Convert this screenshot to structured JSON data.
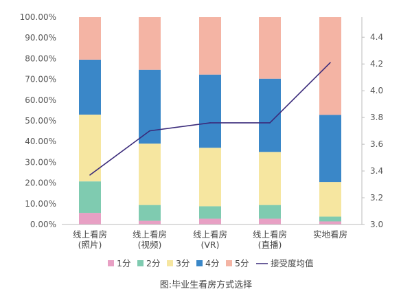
{
  "chart_data": {
    "type": "bar",
    "stacked": true,
    "categories": [
      [
        "线上看房",
        "(照片)"
      ],
      [
        "线上看房",
        "(视频)"
      ],
      [
        "线上看房",
        "(VR)"
      ],
      [
        "线上看房",
        "(直播)"
      ],
      [
        "实地看房"
      ]
    ],
    "series": [
      {
        "name": "1分",
        "color": "#e8a0c4",
        "values": [
          5.6,
          1.8,
          2.8,
          2.8,
          1.5
        ]
      },
      {
        "name": "2分",
        "color": "#7fcbb0",
        "values": [
          15.2,
          7.6,
          6.0,
          6.6,
          2.3
        ]
      },
      {
        "name": "3分",
        "color": "#f6e6a0",
        "values": [
          32.2,
          29.6,
          28.2,
          25.6,
          16.7
        ]
      },
      {
        "name": "4分",
        "color": "#3a87c8",
        "values": [
          26.5,
          35.6,
          35.3,
          35.3,
          32.4
        ]
      },
      {
        "name": "5分",
        "color": "#f4b4a4",
        "values": [
          20.5,
          25.4,
          27.7,
          29.7,
          47.1
        ]
      }
    ],
    "line_series": {
      "name": "接受度均值",
      "color": "#3a2a7a",
      "axis": "right",
      "values": [
        3.37,
        3.7,
        3.76,
        3.76,
        4.21
      ]
    },
    "y_left": {
      "ylim": [
        0,
        100
      ],
      "ticks": [
        "0.00%",
        "10.00%",
        "20.00%",
        "30.00%",
        "40.00%",
        "50.00%",
        "60.00%",
        "70.00%",
        "80.00%",
        "90.00%",
        "100.00%"
      ]
    },
    "y_right": {
      "ylim": [
        3.0,
        4.55
      ],
      "ticks": [
        "3.0",
        "3.2",
        "3.4",
        "3.6",
        "3.8",
        "4.0",
        "4.2",
        "4.4"
      ]
    },
    "legend_position": "bottom",
    "caption": "图:毕业生看房方式选择"
  }
}
